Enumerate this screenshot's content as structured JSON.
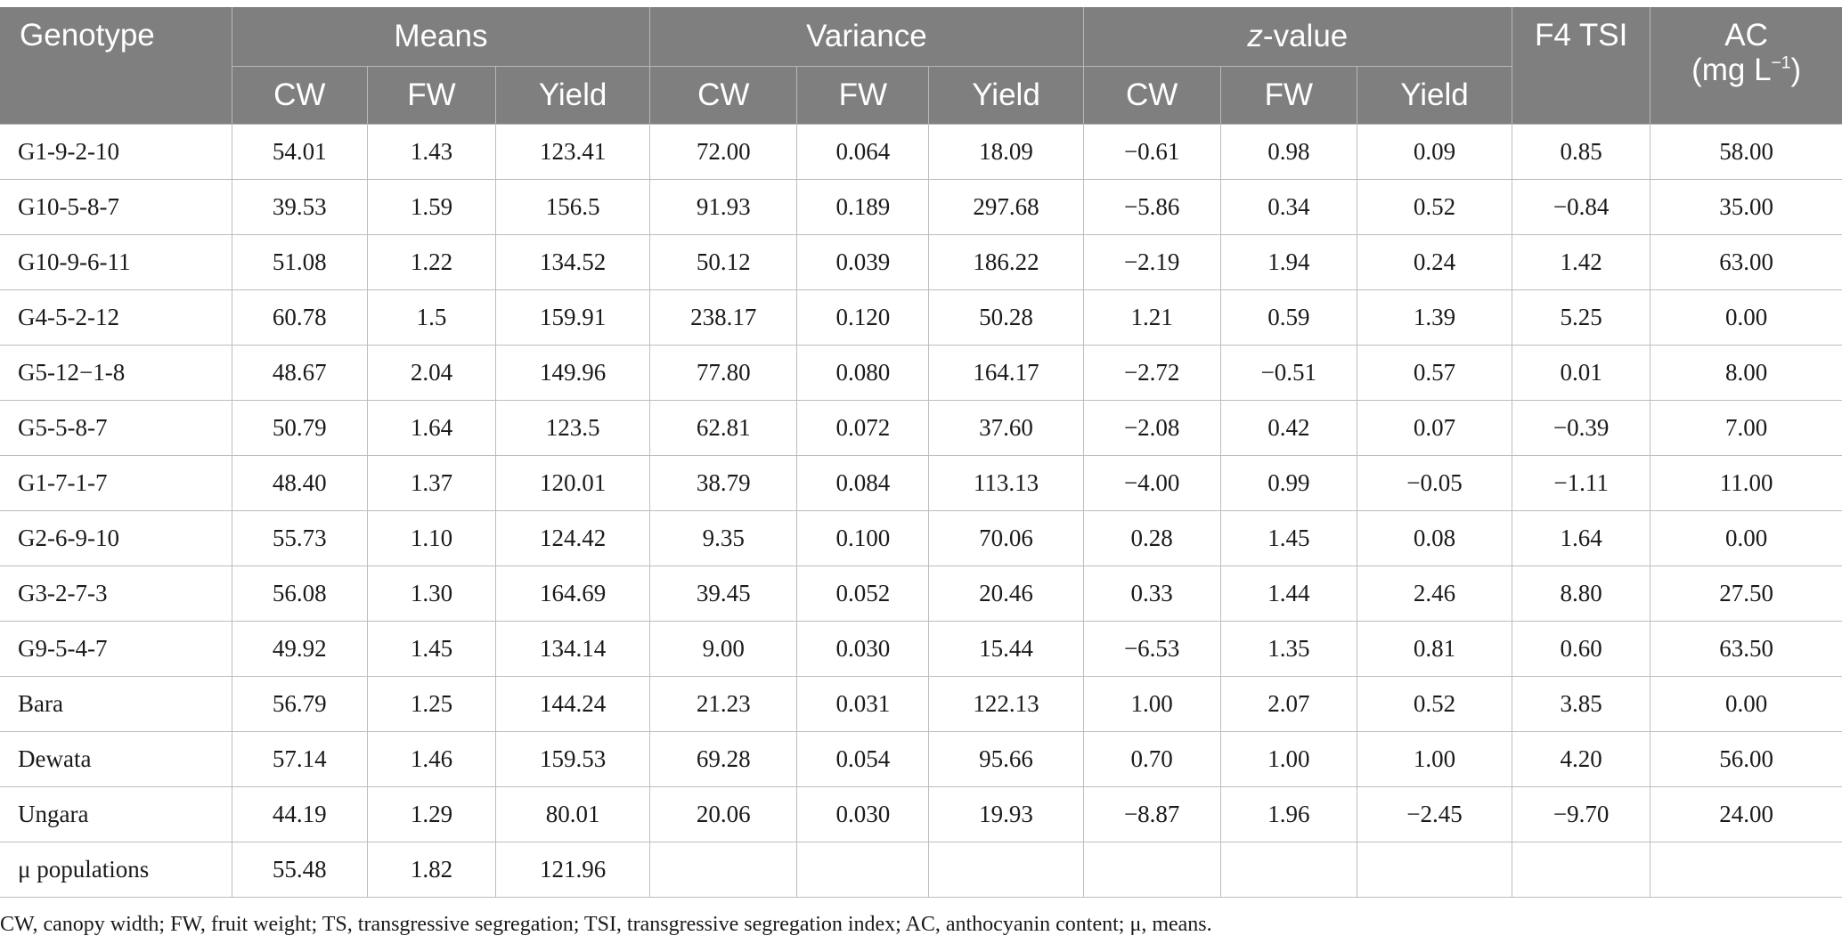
{
  "header": {
    "genotype": "Genotype",
    "groups": {
      "means": "Means",
      "variance": "Variance",
      "zvalue_italic": "z",
      "zvalue_rest": "-value",
      "f4tsi": "F4 TSI",
      "ac_line1": "AC",
      "ac_line2_pre": "(mg L",
      "ac_line2_sup": "−1",
      "ac_line2_post": ")"
    },
    "sub": {
      "means_cw": "CW",
      "means_fw": "FW",
      "means_yield": "Yield",
      "var_cw": "CW",
      "var_fw": "FW",
      "var_yield": "Yield",
      "z_cw": "CW",
      "z_fw": "FW",
      "z_yield": "Yield"
    }
  },
  "rows": [
    [
      "G1-9-2-10",
      "54.01",
      "1.43",
      "123.41",
      "72.00",
      "0.064",
      "18.09",
      "−0.61",
      "0.98",
      "0.09",
      "0.85",
      "58.00"
    ],
    [
      "G10-5-8-7",
      "39.53",
      "1.59",
      "156.5",
      "91.93",
      "0.189",
      "297.68",
      "−5.86",
      "0.34",
      "0.52",
      "−0.84",
      "35.00"
    ],
    [
      "G10-9-6-11",
      "51.08",
      "1.22",
      "134.52",
      "50.12",
      "0.039",
      "186.22",
      "−2.19",
      "1.94",
      "0.24",
      "1.42",
      "63.00"
    ],
    [
      "G4-5-2-12",
      "60.78",
      "1.5",
      "159.91",
      "238.17",
      "0.120",
      "50.28",
      "1.21",
      "0.59",
      "1.39",
      "5.25",
      "0.00"
    ],
    [
      "G5-12−1-8",
      "48.67",
      "2.04",
      "149.96",
      "77.80",
      "0.080",
      "164.17",
      "−2.72",
      "−0.51",
      "0.57",
      "0.01",
      "8.00"
    ],
    [
      "G5-5-8-7",
      "50.79",
      "1.64",
      "123.5",
      "62.81",
      "0.072",
      "37.60",
      "−2.08",
      "0.42",
      "0.07",
      "−0.39",
      "7.00"
    ],
    [
      "G1-7-1-7",
      "48.40",
      "1.37",
      "120.01",
      "38.79",
      "0.084",
      "113.13",
      "−4.00",
      "0.99",
      "−0.05",
      "−1.11",
      "11.00"
    ],
    [
      "G2-6-9-10",
      "55.73",
      "1.10",
      "124.42",
      "9.35",
      "0.100",
      "70.06",
      "0.28",
      "1.45",
      "0.08",
      "1.64",
      "0.00"
    ],
    [
      "G3-2-7-3",
      "56.08",
      "1.30",
      "164.69",
      "39.45",
      "0.052",
      "20.46",
      "0.33",
      "1.44",
      "2.46",
      "8.80",
      "27.50"
    ],
    [
      "G9-5-4-7",
      "49.92",
      "1.45",
      "134.14",
      "9.00",
      "0.030",
      "15.44",
      "−6.53",
      "1.35",
      "0.81",
      "0.60",
      "63.50"
    ],
    [
      "Bara",
      "56.79",
      "1.25",
      "144.24",
      "21.23",
      "0.031",
      "122.13",
      "1.00",
      "2.07",
      "0.52",
      "3.85",
      "0.00"
    ],
    [
      "Dewata",
      "57.14",
      "1.46",
      "159.53",
      "69.28",
      "0.054",
      "95.66",
      "0.70",
      "1.00",
      "1.00",
      "4.20",
      "56.00"
    ],
    [
      "Ungara",
      "44.19",
      "1.29",
      "80.01",
      "20.06",
      "0.030",
      "19.93",
      "−8.87",
      "1.96",
      "−2.45",
      "−9.70",
      "24.00"
    ],
    [
      "μ populations",
      "55.48",
      "1.82",
      "121.96",
      "",
      "",
      "",
      "",
      "",
      "",
      "",
      ""
    ]
  ],
  "footnote": "CW, canopy width; FW, fruit weight; TS, transgressive segregation; TSI, transgressive segregation index; AC, anthocyanin content; μ, means."
}
